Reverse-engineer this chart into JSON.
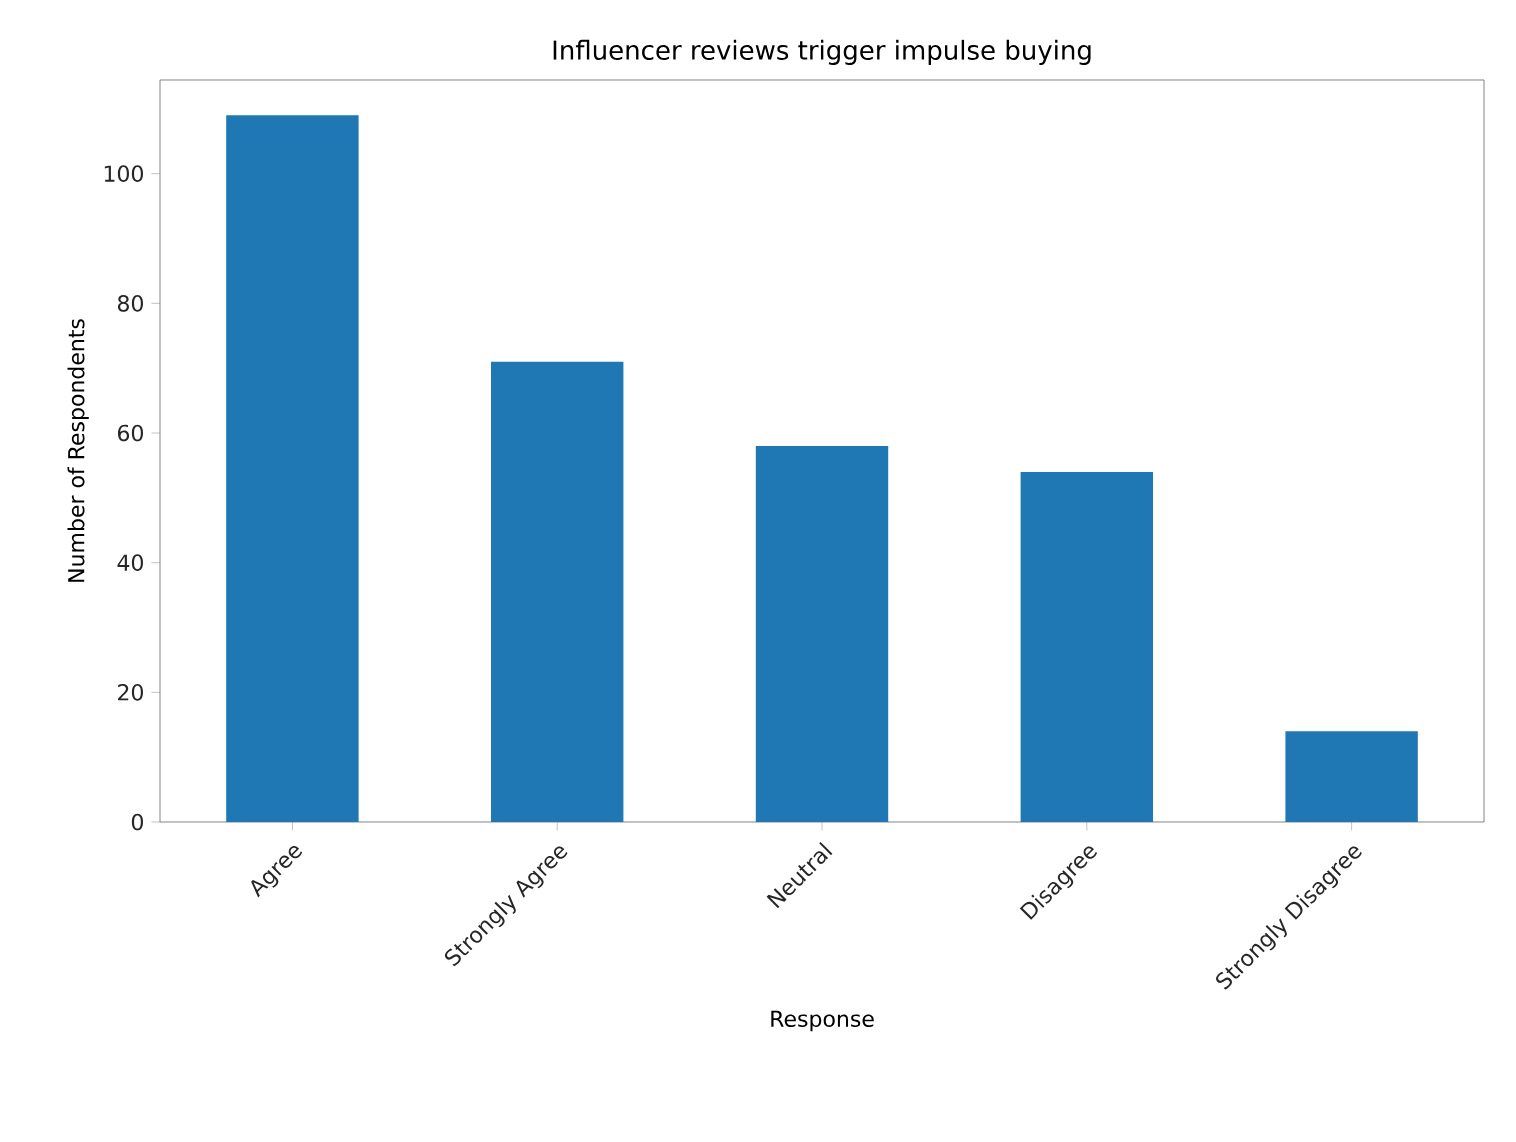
{
  "chart_data": {
    "type": "bar",
    "title": "Influencer reviews trigger impulse buying",
    "xlabel": "Response",
    "ylabel": "Number of Respondents",
    "categories": [
      "Agree",
      "Strongly Agree",
      "Neutral",
      "Disagree",
      "Strongly Disagree"
    ],
    "values": [
      109,
      71,
      58,
      54,
      14
    ],
    "color": "#1f77b4",
    "ylim": [
      0,
      114.45
    ],
    "yticks": [
      0,
      20,
      40,
      60,
      80,
      100
    ],
    "grid": false
  }
}
